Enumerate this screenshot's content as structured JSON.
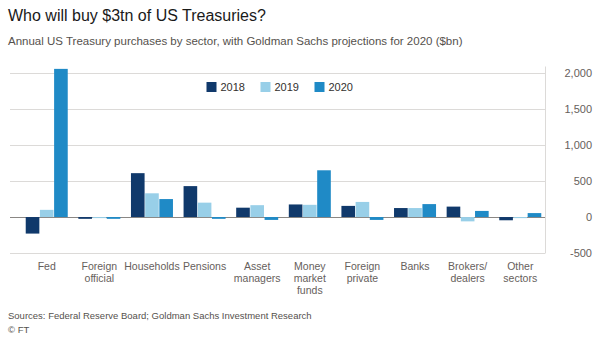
{
  "chart_data": {
    "type": "bar",
    "title": "Who will buy $3tn of US Treasuries?",
    "subtitle": "Annual US Treasury purchases by sector, with Goldman Sachs projections for 2020 ($bn)",
    "source": "Sources: Federal Reserve Board; Goldman Sachs Investment Research",
    "credit": "© FT",
    "categories": [
      "Fed",
      "Foreign official",
      "Households",
      "Pensions",
      "Asset managers",
      "Money market funds",
      "Foreign private",
      "Banks",
      "Brokers/dealers",
      "Other sectors"
    ],
    "series": [
      {
        "name": "2018",
        "color": "#10396b",
        "values": [
          -230,
          -25,
          610,
          430,
          130,
          175,
          155,
          125,
          145,
          -45
        ]
      },
      {
        "name": "2019",
        "color": "#98cfe8",
        "values": [
          100,
          -15,
          330,
          200,
          165,
          170,
          210,
          125,
          -60,
          -15
        ]
      },
      {
        "name": "2020",
        "color": "#1f8ac6",
        "values": [
          2060,
          -25,
          250,
          -25,
          -40,
          650,
          -40,
          180,
          85,
          55
        ]
      }
    ],
    "ylim": [
      -500,
      2100
    ],
    "yticks": [
      -500,
      0,
      500,
      {
        "value": 1000,
        "label": "1,000"
      },
      {
        "value": 1500,
        "label": "1,500"
      },
      {
        "value": 2000,
        "label": "2,000"
      }
    ],
    "grid": true,
    "legend": "top"
  }
}
